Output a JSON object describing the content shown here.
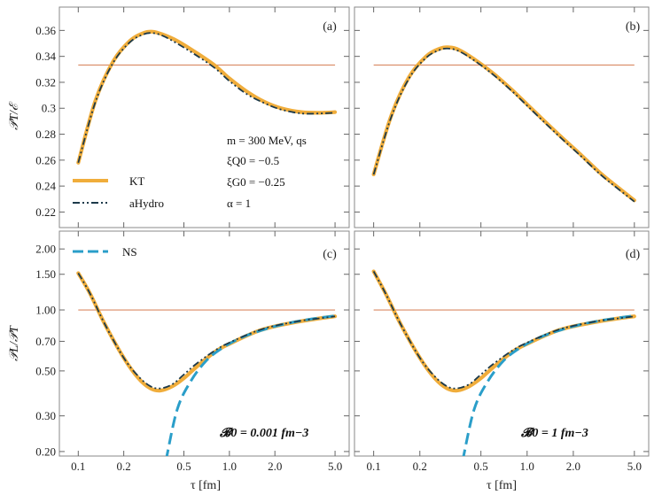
{
  "chart_data": {
    "type": "line",
    "layout": "2x2 grid, log x axis, shared x label",
    "xlabel": "τ [fm]",
    "x_ticks": [
      "0.1",
      "0.2",
      "0.5",
      "1.0",
      "2.0",
      "5.0"
    ],
    "x_tick_values": [
      0.1,
      0.2,
      0.5,
      1.0,
      2.0,
      5.0
    ],
    "xlim": [
      0.075,
      6.2
    ],
    "colors": {
      "KT": "#f0ad3b",
      "aHydro": "#1d3a4a",
      "NS": "#2a9ec9",
      "ref": "#d98a63"
    },
    "legend": [
      {
        "name": "KT",
        "style": "solid thick"
      },
      {
        "name": "aHydro",
        "style": "dash-dot"
      },
      {
        "name": "NS",
        "style": "dashed"
      }
    ],
    "annotations": {
      "params": [
        "m = 300 MeV, qs",
        "ξQ0 = −0.5",
        "ξG0 = −0.25",
        "α = 1"
      ],
      "B0_c": "𝓑0 = 0.001 fm−3",
      "B0_d": "𝓑0 = 1 fm−3"
    },
    "panels": [
      {
        "label": "(a)",
        "ylabel": "𝒫T/ℰ",
        "ylim": [
          0.208,
          0.378
        ],
        "y_ticks": [
          0.22,
          0.24,
          0.26,
          0.28,
          0.3,
          0.32,
          0.34,
          0.36
        ],
        "y_tick_labels": [
          "0.22",
          "0.24",
          "0.26",
          "0.28",
          "0.3",
          "0.32",
          "0.34",
          "0.36"
        ],
        "reference_y": 0.3333,
        "series": [
          {
            "name": "KT",
            "x": [
              0.1,
              0.13,
              0.17,
              0.22,
              0.27,
              0.31,
              0.36,
              0.45,
              0.6,
              0.8,
              1.0,
              1.3,
              1.7,
              2.2,
              3.0,
              4.0,
              5.0
            ],
            "values": [
              0.258,
              0.306,
              0.336,
              0.352,
              0.358,
              0.359,
              0.357,
              0.352,
              0.343,
              0.333,
              0.323,
              0.313,
              0.305,
              0.3,
              0.297,
              0.2965,
              0.297
            ]
          },
          {
            "name": "aHydro",
            "x": [
              0.1,
              0.13,
              0.17,
              0.22,
              0.27,
              0.31,
              0.36,
              0.45,
              0.6,
              0.8,
              1.0,
              1.3,
              1.7,
              2.2,
              3.0,
              4.0,
              5.0
            ],
            "values": [
              0.258,
              0.305,
              0.335,
              0.351,
              0.357,
              0.358,
              0.356,
              0.35,
              0.341,
              0.331,
              0.321,
              0.311,
              0.304,
              0.299,
              0.296,
              0.296,
              0.2965
            ]
          }
        ]
      },
      {
        "label": "(b)",
        "ylabel": "",
        "ylim": [
          0.208,
          0.378
        ],
        "y_ticks": [
          0.22,
          0.24,
          0.26,
          0.28,
          0.3,
          0.32,
          0.34,
          0.36
        ],
        "y_tick_labels": [],
        "reference_y": 0.3333,
        "series": [
          {
            "name": "KT",
            "x": [
              0.1,
              0.13,
              0.17,
              0.22,
              0.27,
              0.31,
              0.36,
              0.45,
              0.6,
              0.8,
              1.0,
              1.3,
              1.7,
              2.2,
              3.0,
              4.0,
              5.0
            ],
            "values": [
              0.249,
              0.294,
              0.324,
              0.34,
              0.346,
              0.347,
              0.345,
              0.338,
              0.327,
              0.314,
              0.303,
              0.29,
              0.277,
              0.265,
              0.25,
              0.238,
              0.229
            ]
          },
          {
            "name": "aHydro",
            "x": [
              0.1,
              0.13,
              0.17,
              0.22,
              0.27,
              0.31,
              0.36,
              0.45,
              0.6,
              0.8,
              1.0,
              1.3,
              1.7,
              2.2,
              3.0,
              4.0,
              5.0
            ],
            "values": [
              0.249,
              0.293,
              0.323,
              0.339,
              0.345,
              0.346,
              0.344,
              0.337,
              0.326,
              0.313,
              0.302,
              0.289,
              0.276,
              0.264,
              0.249,
              0.237,
              0.228
            ]
          }
        ]
      },
      {
        "label": "(c)",
        "ylabel": "𝒫L/𝒫T",
        "yscale": "log",
        "ylim": [
          0.19,
          2.45
        ],
        "y_ticks": [
          0.2,
          0.3,
          0.5,
          0.7,
          1.0,
          1.5,
          2.0
        ],
        "y_tick_labels": [
          "0.20",
          "0.30",
          "0.50",
          "0.70",
          "1.00",
          "1.50",
          "2.00"
        ],
        "reference_y": 1.0,
        "series": [
          {
            "name": "KT",
            "x": [
              0.1,
              0.12,
              0.15,
              0.2,
              0.25,
              0.3,
              0.35,
              0.42,
              0.5,
              0.6,
              0.8,
              1.0,
              1.5,
              2.0,
              3.0,
              4.0,
              5.0
            ],
            "values": [
              1.52,
              1.2,
              0.85,
              0.58,
              0.46,
              0.41,
              0.4,
              0.42,
              0.46,
              0.52,
              0.62,
              0.68,
              0.78,
              0.83,
              0.88,
              0.91,
              0.93
            ]
          },
          {
            "name": "aHydro",
            "x": [
              0.1,
              0.12,
              0.15,
              0.2,
              0.25,
              0.3,
              0.35,
              0.42,
              0.5,
              0.6,
              0.8,
              1.0,
              1.5,
              2.0,
              3.0,
              4.0,
              5.0
            ],
            "values": [
              1.52,
              1.2,
              0.85,
              0.58,
              0.47,
              0.42,
              0.41,
              0.43,
              0.48,
              0.54,
              0.63,
              0.69,
              0.785,
              0.835,
              0.885,
              0.91,
              0.93
            ]
          },
          {
            "name": "NS",
            "x": [
              0.38,
              0.45,
              0.55,
              0.7,
              0.9,
              1.2,
              1.6,
              2.2,
              3.0,
              4.0,
              5.0
            ],
            "values": [
              0.18,
              0.32,
              0.44,
              0.56,
              0.65,
              0.73,
              0.79,
              0.845,
              0.885,
              0.915,
              0.935
            ]
          }
        ]
      },
      {
        "label": "(d)",
        "ylabel": "",
        "yscale": "log",
        "ylim": [
          0.19,
          2.45
        ],
        "y_ticks": [
          0.2,
          0.3,
          0.5,
          0.7,
          1.0,
          1.5,
          2.0
        ],
        "y_tick_labels": [],
        "reference_y": 1.0,
        "series": [
          {
            "name": "KT",
            "x": [
              0.1,
              0.12,
              0.15,
              0.2,
              0.25,
              0.3,
              0.35,
              0.42,
              0.5,
              0.6,
              0.8,
              1.0,
              1.5,
              2.0,
              3.0,
              4.0,
              5.0
            ],
            "values": [
              1.55,
              1.2,
              0.85,
              0.58,
              0.46,
              0.41,
              0.4,
              0.42,
              0.46,
              0.52,
              0.62,
              0.68,
              0.78,
              0.83,
              0.88,
              0.91,
              0.93
            ]
          },
          {
            "name": "aHydro",
            "x": [
              0.1,
              0.12,
              0.15,
              0.2,
              0.25,
              0.3,
              0.35,
              0.42,
              0.5,
              0.6,
              0.8,
              1.0,
              1.5,
              2.0,
              3.0,
              4.0,
              5.0
            ],
            "values": [
              1.55,
              1.2,
              0.85,
              0.58,
              0.47,
              0.42,
              0.41,
              0.43,
              0.48,
              0.54,
              0.63,
              0.69,
              0.785,
              0.835,
              0.885,
              0.91,
              0.93
            ]
          },
          {
            "name": "NS",
            "x": [
              0.38,
              0.45,
              0.55,
              0.7,
              0.9,
              1.2,
              1.6,
              2.2,
              3.0,
              4.0,
              5.0
            ],
            "values": [
              0.18,
              0.32,
              0.44,
              0.56,
              0.65,
              0.73,
              0.79,
              0.845,
              0.885,
              0.915,
              0.935
            ]
          }
        ]
      }
    ]
  }
}
